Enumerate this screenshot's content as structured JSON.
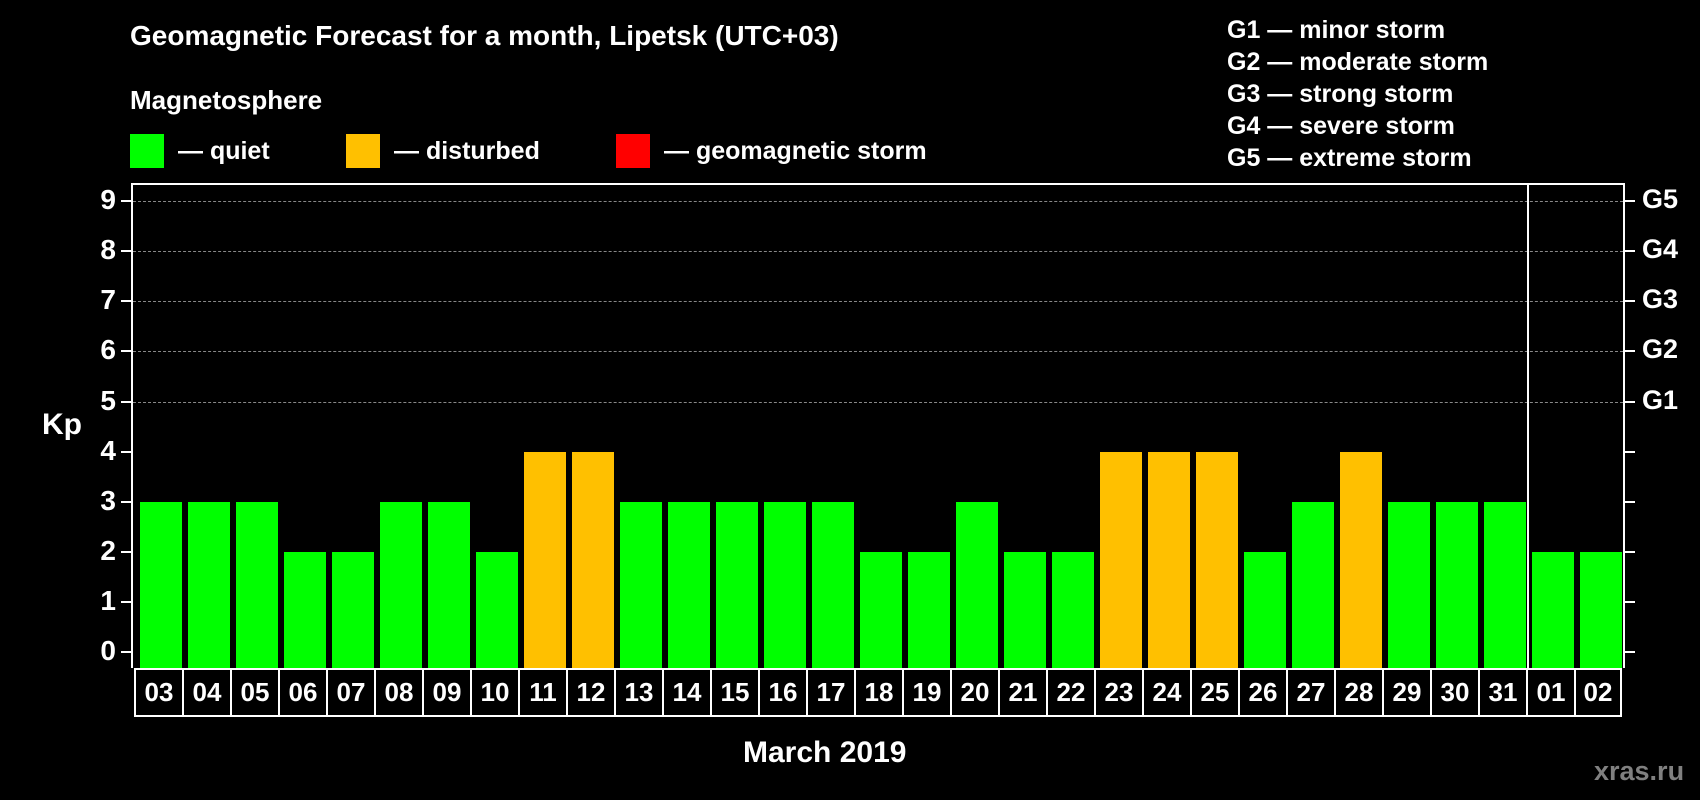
{
  "title": "Geomagnetic Forecast for a month, Lipetsk (UTC+03)",
  "subtitle": "Magnetosphere",
  "legend": [
    {
      "label": "— quiet",
      "color": "#00ff00"
    },
    {
      "label": "— disturbed",
      "color": "#ffc000"
    },
    {
      "label": "— geomagnetic storm",
      "color": "#ff0000"
    }
  ],
  "g_scale_legend": [
    "G1 — minor storm",
    "G2 — moderate storm",
    "G3 — strong storm",
    "G4 — severe storm",
    "G5 — extreme storm"
  ],
  "y_axis_label": "Kp",
  "x_axis_title": "March 2019",
  "watermark": "xras.ru",
  "colors": {
    "quiet": "#00ff00",
    "disturbed": "#ffc000",
    "storm": "#ff0000",
    "grid": "#888888"
  },
  "chart_data": {
    "type": "bar",
    "title": "Geomagnetic Forecast for a month, Lipetsk (UTC+03)",
    "xlabel": "March 2019",
    "ylabel": "Kp",
    "ylim": [
      0,
      9
    ],
    "yticks": [
      0,
      1,
      2,
      3,
      4,
      5,
      6,
      7,
      8,
      9
    ],
    "right_axis_ticks": [
      {
        "y": 5,
        "label": "G1"
      },
      {
        "y": 6,
        "label": "G2"
      },
      {
        "y": 7,
        "label": "G3"
      },
      {
        "y": 8,
        "label": "G4"
      },
      {
        "y": 9,
        "label": "G5"
      }
    ],
    "grid": {
      "horizontal_dashed_at": [
        5,
        6,
        7,
        8,
        9
      ]
    },
    "month_divider_after": "31",
    "categories": [
      "03",
      "04",
      "05",
      "06",
      "07",
      "08",
      "09",
      "10",
      "11",
      "12",
      "13",
      "14",
      "15",
      "16",
      "17",
      "18",
      "19",
      "20",
      "21",
      "22",
      "23",
      "24",
      "25",
      "26",
      "27",
      "28",
      "29",
      "30",
      "31",
      "01",
      "02"
    ],
    "values": [
      3,
      3,
      3,
      2,
      2,
      3,
      3,
      2,
      4,
      4,
      3,
      3,
      3,
      3,
      3,
      2,
      2,
      3,
      2,
      2,
      4,
      4,
      4,
      2,
      3,
      4,
      3,
      3,
      3,
      2,
      2
    ],
    "status": [
      "quiet",
      "quiet",
      "quiet",
      "quiet",
      "quiet",
      "quiet",
      "quiet",
      "quiet",
      "disturbed",
      "disturbed",
      "quiet",
      "quiet",
      "quiet",
      "quiet",
      "quiet",
      "quiet",
      "quiet",
      "quiet",
      "quiet",
      "quiet",
      "disturbed",
      "disturbed",
      "disturbed",
      "quiet",
      "quiet",
      "disturbed",
      "quiet",
      "quiet",
      "quiet",
      "quiet",
      "quiet"
    ],
    "legend": [
      "quiet",
      "disturbed",
      "geomagnetic storm"
    ]
  }
}
